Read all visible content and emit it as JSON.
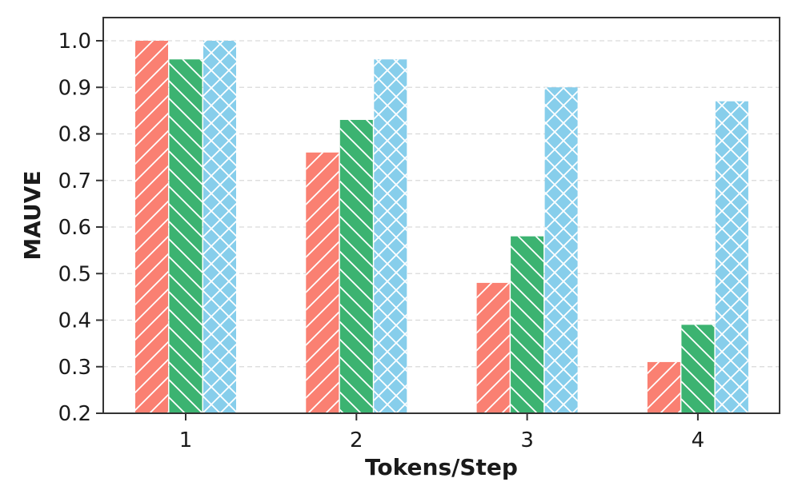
{
  "chart_data": {
    "type": "bar",
    "title": "",
    "xlabel": "Tokens/Step",
    "ylabel": "MAUVE",
    "categories": [
      "1",
      "2",
      "3",
      "4"
    ],
    "series": [
      {
        "values": [
          1.0,
          0.76,
          0.48,
          0.31
        ],
        "color": "#fa8072",
        "hatch": "forward-diagonal"
      },
      {
        "values": [
          0.96,
          0.83,
          0.58,
          0.39
        ],
        "color": "#3cb371",
        "hatch": "back-diagonal"
      },
      {
        "values": [
          1.0,
          0.96,
          0.9,
          0.87
        ],
        "color": "#87ceeb",
        "hatch": "cross"
      }
    ],
    "ylim": [
      0.2,
      1.05
    ],
    "yticks": [
      "0.2",
      "0.3",
      "0.4",
      "0.5",
      "0.6",
      "0.7",
      "0.8",
      "0.9",
      "1.0"
    ],
    "grid": "y-dashed",
    "legend": "none"
  }
}
